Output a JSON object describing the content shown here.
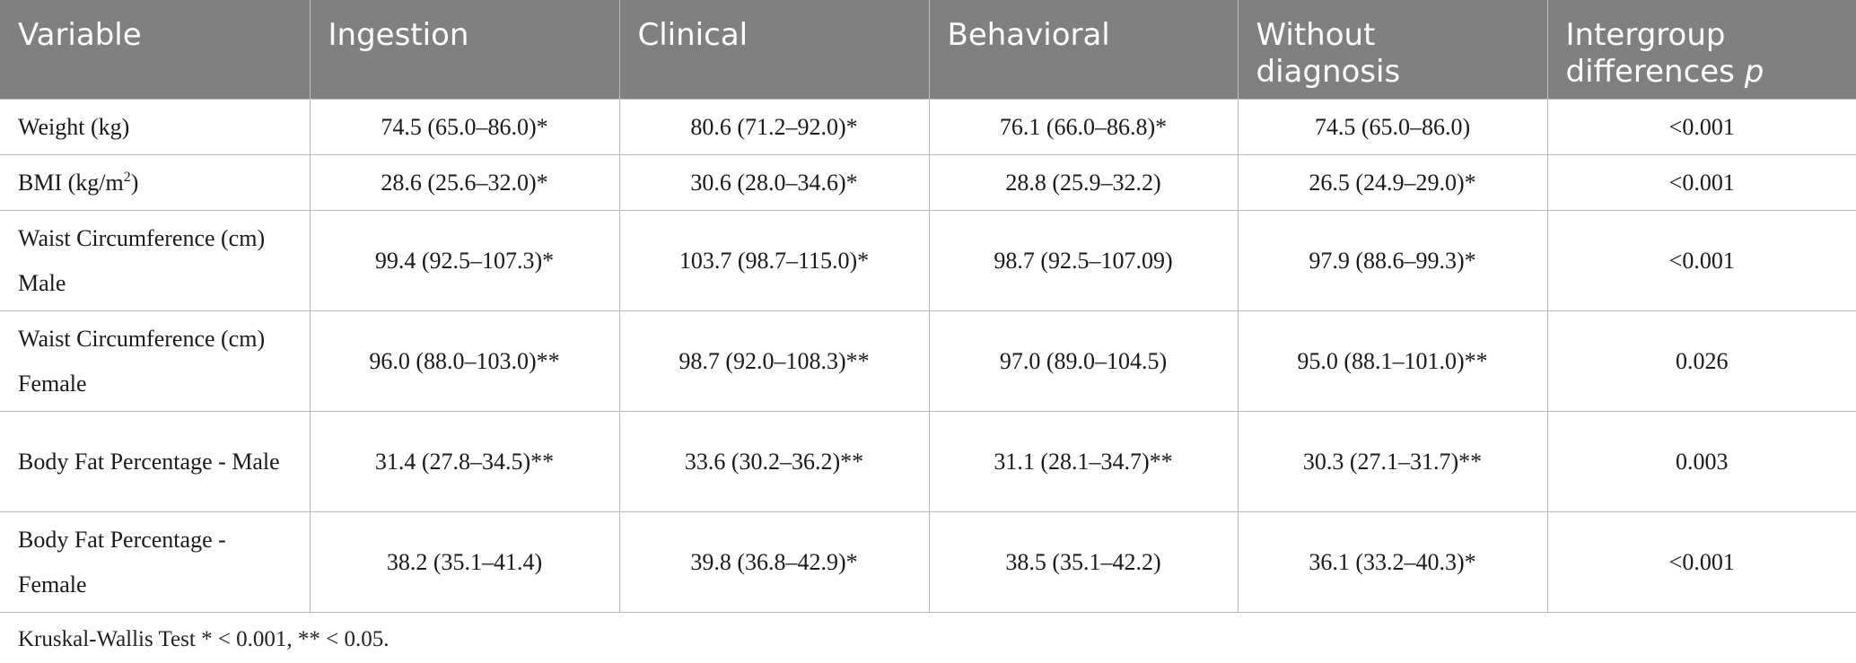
{
  "table": {
    "headers": [
      "Variable",
      "Ingestion",
      "Clinical",
      "Behavioral",
      "Without diagnosis",
      "Intergroup differences"
    ],
    "header_p_symbol": "p",
    "rows": [
      {
        "variable": "Weight (kg)",
        "ingestion": "74.5 (65.0–86.0)*",
        "clinical": "80.6 (71.2–92.0)*",
        "behavioral": "76.1 (66.0–86.8)*",
        "without_diagnosis": "74.5 (65.0–86.0)",
        "intergroup_p": "<0.001"
      },
      {
        "variable_prefix": "BMI (kg/m",
        "variable_sup": "2",
        "variable_suffix": ")",
        "ingestion": "28.6 (25.6–32.0)*",
        "clinical": "30.6 (28.0–34.6)*",
        "behavioral": "28.8 (25.9–32.2)",
        "without_diagnosis": "26.5 (24.9–29.0)*",
        "intergroup_p": "<0.001"
      },
      {
        "variable": "Waist Circumference (cm) Male",
        "ingestion": "99.4 (92.5–107.3)*",
        "clinical": "103.7 (98.7–115.0)*",
        "behavioral": "98.7 (92.5–107.09)",
        "without_diagnosis": "97.9 (88.6–99.3)*",
        "intergroup_p": "<0.001"
      },
      {
        "variable": "Waist Circumference (cm) Female",
        "ingestion": "96.0 (88.0–103.0)**",
        "clinical": "98.7 (92.0–108.3)**",
        "behavioral": "97.0 (89.0–104.5)",
        "without_diagnosis": "95.0 (88.1–101.0)**",
        "intergroup_p": "0.026"
      },
      {
        "variable": "Body Fat Percentage - Male",
        "ingestion": "31.4 (27.8–34.5)**",
        "clinical": "33.6 (30.2–36.2)**",
        "behavioral": "31.1 (28.1–34.7)**",
        "without_diagnosis": "30.3 (27.1–31.7)**",
        "intergroup_p": "0.003"
      },
      {
        "variable": "Body Fat Percentage - Female",
        "ingestion": "38.2 (35.1–41.4)",
        "clinical": "39.8 (36.8–42.9)*",
        "behavioral": "38.5 (35.1–42.2)",
        "without_diagnosis": "36.1 (33.2–40.3)*",
        "intergroup_p": "<0.001"
      }
    ],
    "footnote": "Kruskal-Wallis Test * < 0.001, ** < 0.05."
  },
  "colors": {
    "header_background": "#808080",
    "header_text": "#ffffff",
    "grid_line": "#b8b8b8"
  }
}
